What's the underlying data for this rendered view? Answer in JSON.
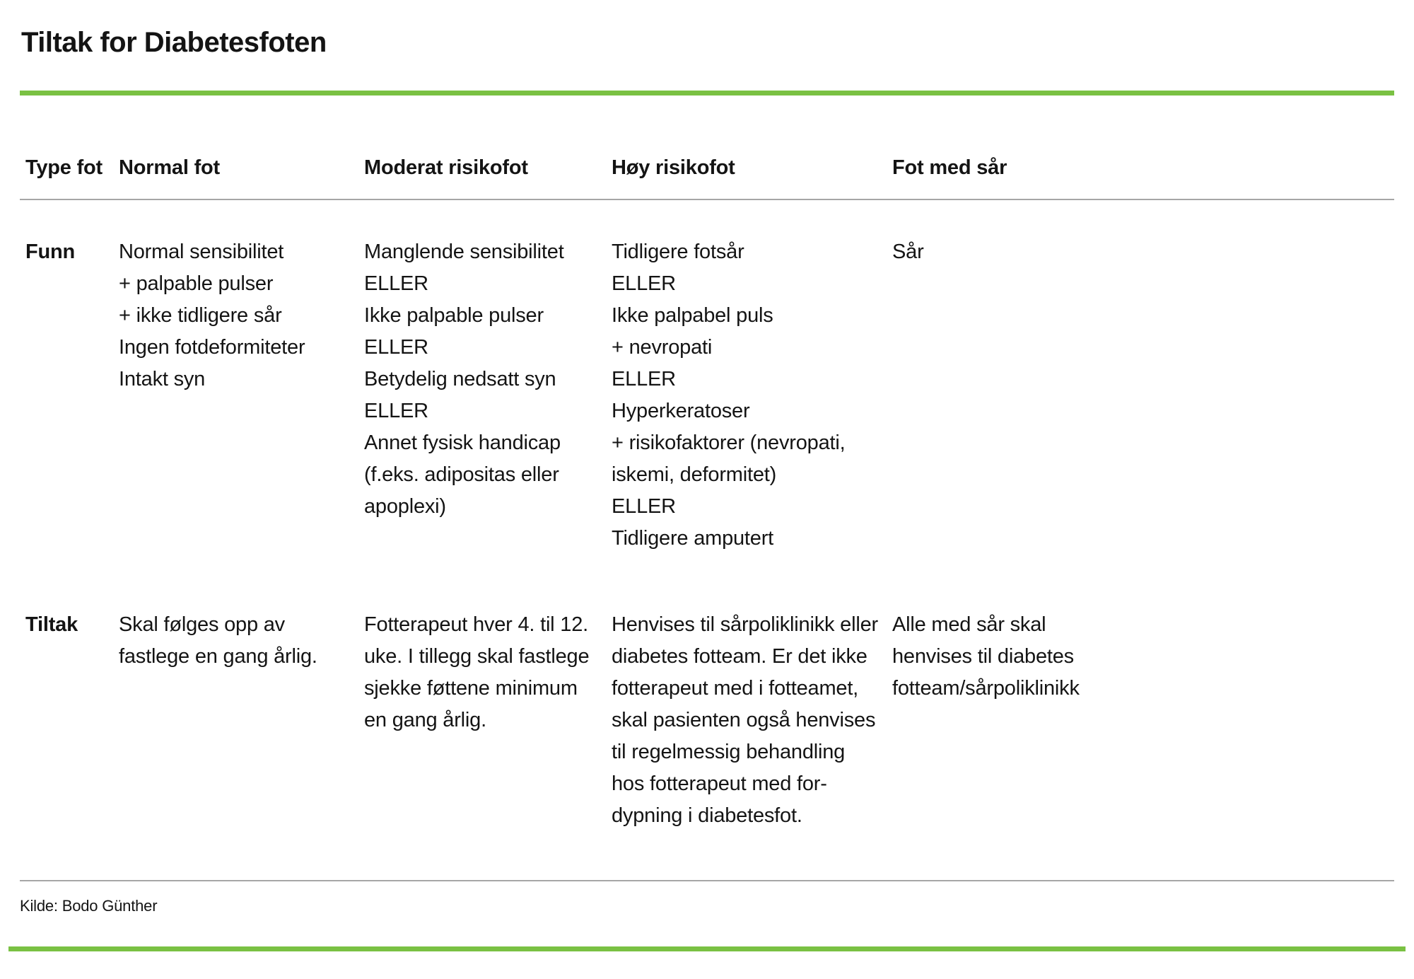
{
  "page": {
    "title": "Tiltak for Diabetesfoten",
    "source": "Kilde: Bodo Günther",
    "colors": {
      "accent_green": "#7ac143",
      "rule_gray": "#a6a6a6"
    }
  },
  "table": {
    "columns": [
      "Type fot",
      "Normal fot",
      "Moderat risikofot",
      "Høy risikofot",
      "Fot med sår"
    ],
    "rows": [
      {
        "label": "Funn",
        "cells": [
          "Normal sensibilitet\n+ palpable pulser\n+ ikke tidligere sår\nIngen fotdeformiteter\nIntakt syn",
          "Manglende sensibilitet\nELLER\nIkke palpable pulser\nELLER\nBetydelig nedsatt syn\nELLER\nAnnet fysisk handicap\n(f.eks. adipositas eller\napoplexi)",
          "Tidligere fotsår\nELLER\nIkke palpabel puls\n+ nevropati\nELLER\nHyperkeratoser\n+ risikofaktorer (nevropati,\niskemi, deformitet)\nELLER\nTidligere amputert",
          "Sår"
        ]
      },
      {
        "label": "Tiltak",
        "cells": [
          "Skal følges opp av\nfastlege en gang årlig.",
          "Fotterapeut hver 4. til 12.\nuke. I tillegg skal fastlege\nsjekke føttene minimum\nen gang årlig.",
          "Henvises til sårpoliklinikk eller\ndiabetes fotteam. Er det ikke\nfotterapeut med i fotteamet,\nskal pasienten også henvises\ntil regelmessig behandling\nhos fotterapeut med for-\ndypning i diabetesfot.",
          "Alle med sår skal\nhenvises til diabetes\nfotteam/sårpoliklinikk"
        ]
      }
    ]
  }
}
